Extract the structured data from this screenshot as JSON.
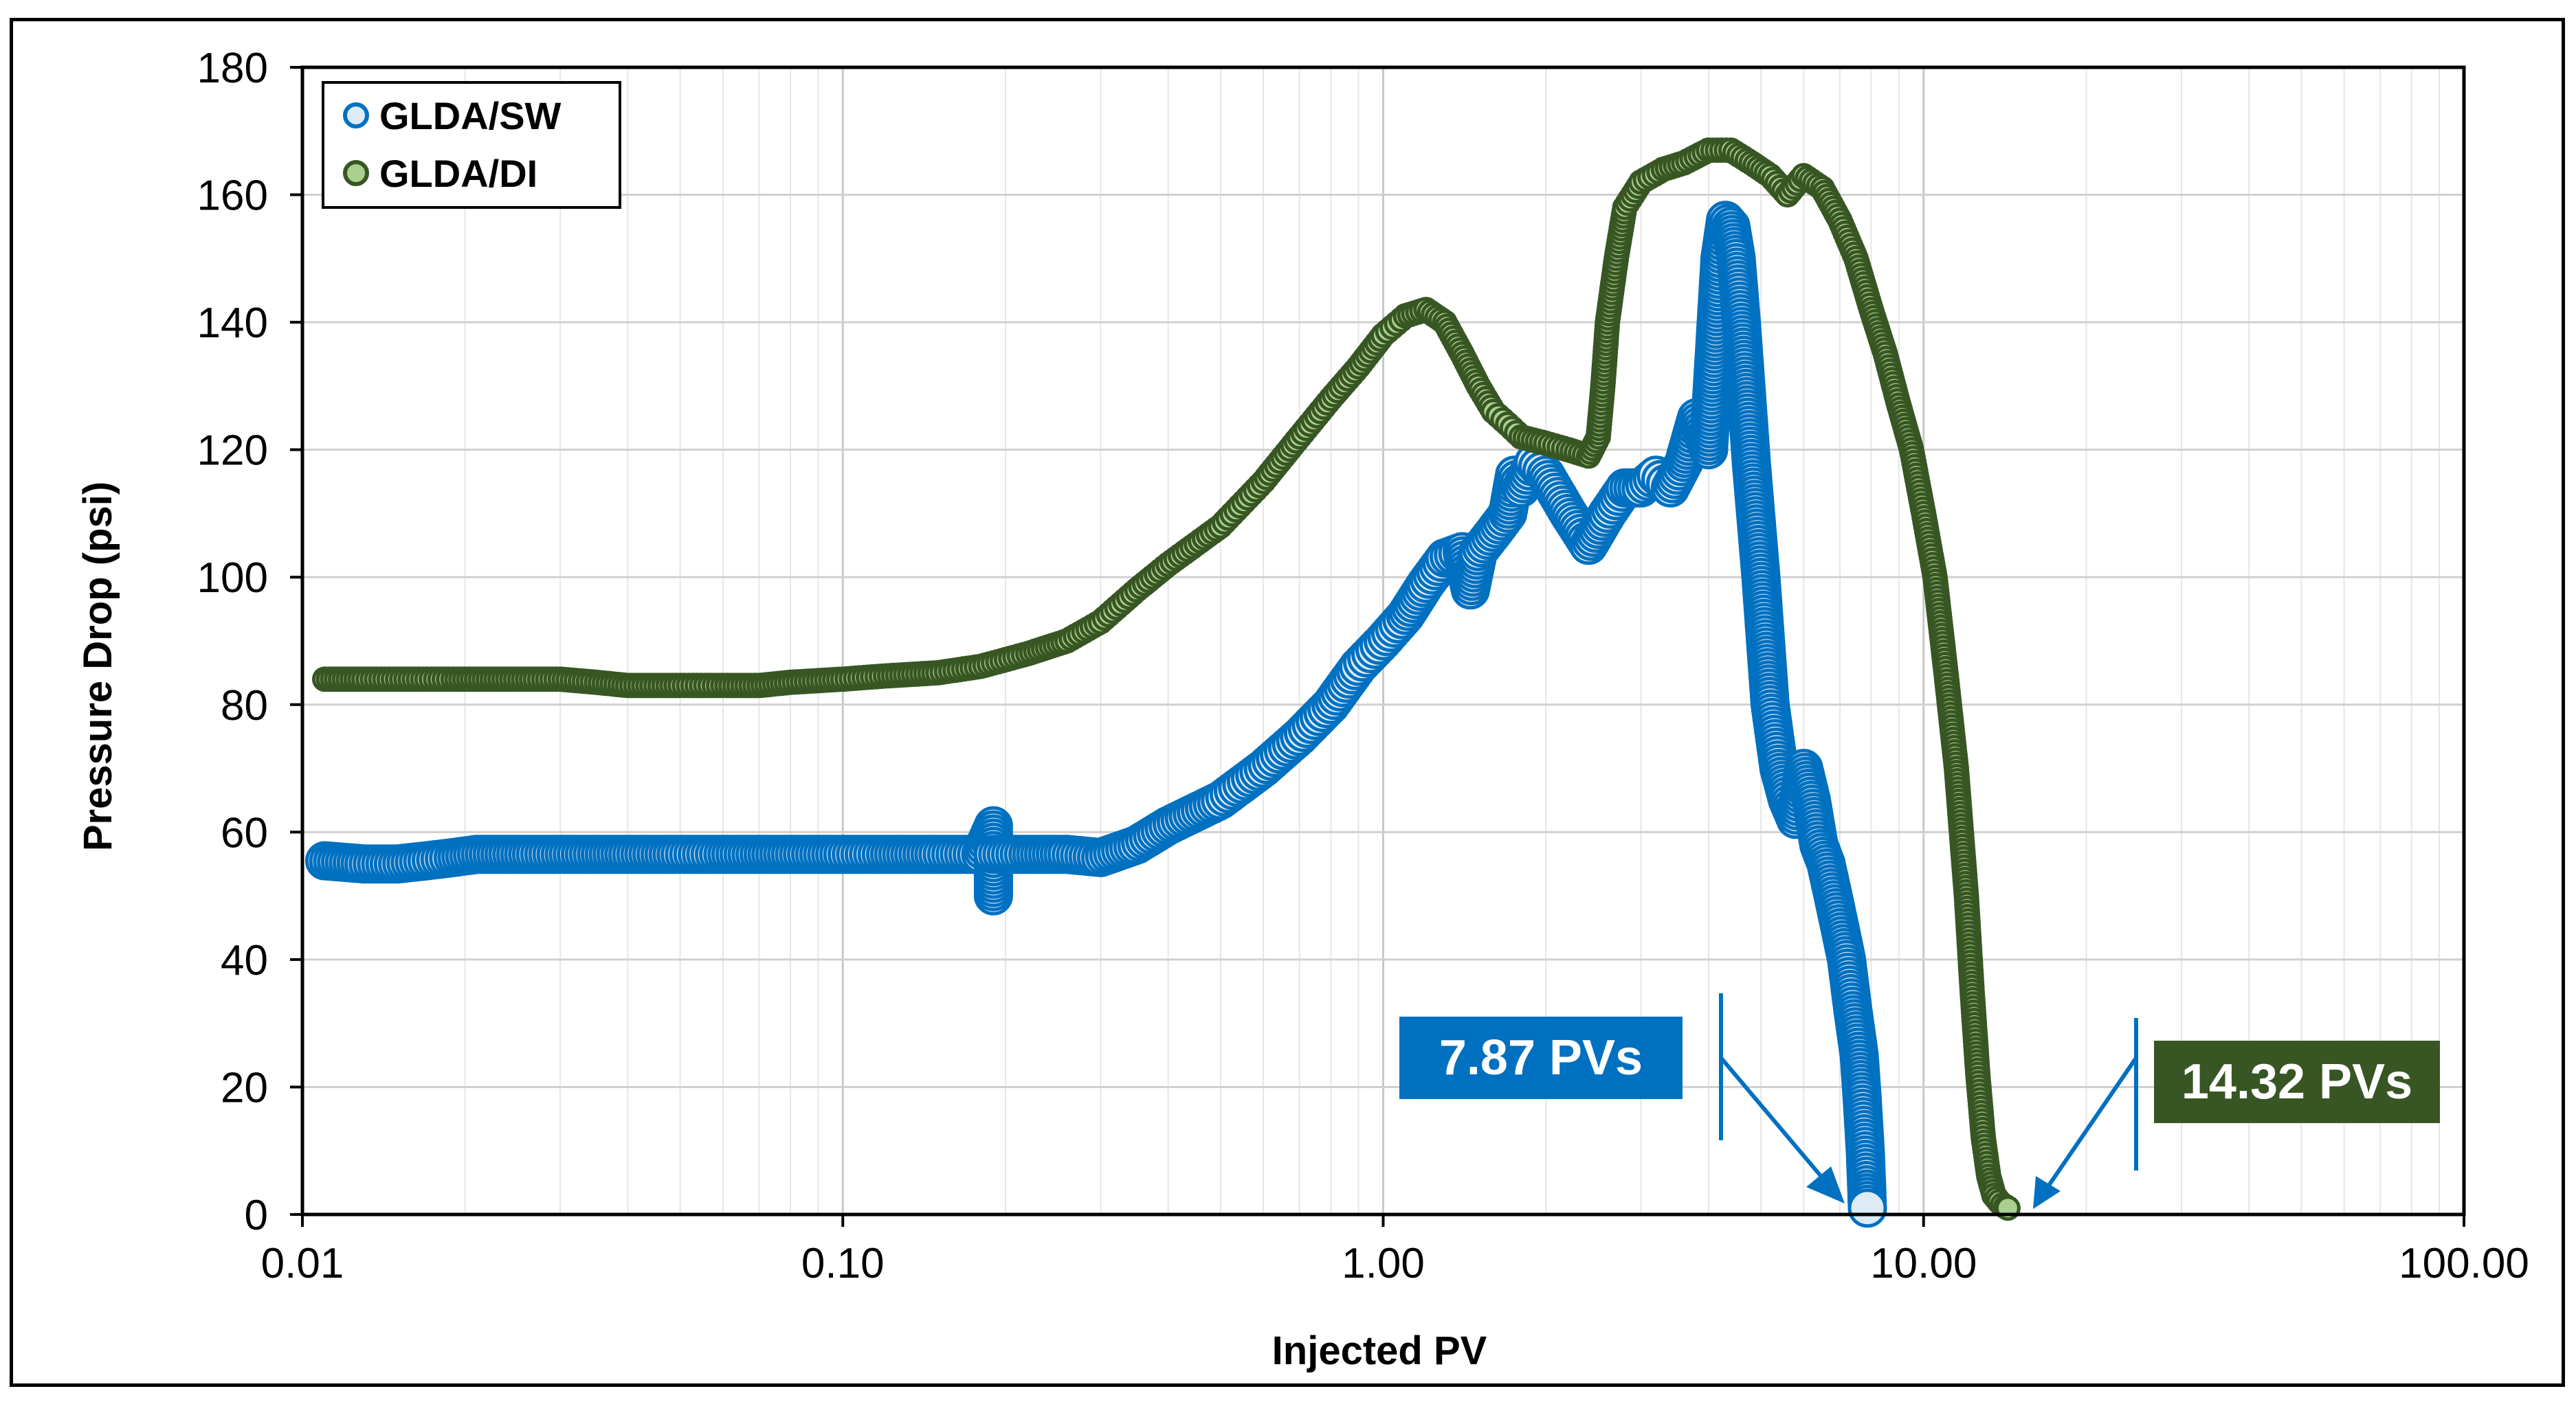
{
  "chart_data": {
    "type": "scatter",
    "title": "",
    "xlabel": "Injected PV",
    "ylabel": "Pressure Drop (psi)",
    "xscale": "log",
    "xlim": [
      0.01,
      100
    ],
    "ylim": [
      0,
      180
    ],
    "x_tick_labels": [
      "0.01",
      "0.10",
      "1.00",
      "10.00",
      "100.00"
    ],
    "y_tick_labels": [
      "0",
      "20",
      "40",
      "60",
      "80",
      "100",
      "120",
      "140",
      "160",
      "180"
    ],
    "grid": true,
    "legend_position": "top-left",
    "series": [
      {
        "name": "GLDA/SW",
        "color": "#0070C0",
        "fill": "#DDEBF7",
        "x": [
          0.011,
          0.013,
          0.015,
          0.017,
          0.019,
          0.021,
          0.024,
          0.027,
          0.03,
          0.035,
          0.04,
          0.05,
          0.06,
          0.07,
          0.08,
          0.1,
          0.12,
          0.15,
          0.18,
          0.19,
          0.19,
          0.19,
          0.22,
          0.26,
          0.3,
          0.35,
          0.4,
          0.5,
          0.6,
          0.7,
          0.8,
          0.9,
          1.0,
          1.1,
          1.2,
          1.3,
          1.4,
          1.45,
          1.5,
          1.6,
          1.7,
          1.75,
          1.8,
          1.9,
          2.0,
          2.2,
          2.4,
          2.6,
          2.8,
          3.0,
          3.2,
          3.4,
          3.6,
          3.8,
          4.0,
          4.1,
          4.2,
          4.3,
          4.4,
          4.5,
          4.6,
          4.8,
          5.0,
          5.2,
          5.4,
          5.6,
          5.8,
          6.0,
          6.2,
          6.4,
          6.6,
          6.8,
          7.0,
          7.2,
          7.4,
          7.6,
          7.7,
          7.8,
          7.85,
          7.87
        ],
        "values": [
          55.5,
          55,
          55,
          55.5,
          56,
          56.5,
          56.5,
          56.5,
          56.5,
          56.5,
          56.5,
          56.5,
          56.5,
          56.5,
          56.5,
          56.5,
          56.5,
          56.5,
          56.5,
          61,
          50,
          56.5,
          56.5,
          56.5,
          56,
          58,
          61,
          65,
          70,
          75,
          80,
          86,
          90,
          94,
          99,
          103,
          104,
          98,
          104,
          107,
          110,
          116,
          114,
          118,
          116,
          110,
          105,
          110,
          114,
          114,
          116,
          114,
          118,
          125,
          120,
          135,
          150,
          156,
          155,
          150,
          140,
          118,
          100,
          80,
          70,
          65,
          62,
          70,
          65,
          58,
          55,
          50,
          45,
          40,
          32,
          25,
          18,
          10,
          4,
          1
        ]
      },
      {
        "name": "GLDA/DI",
        "color": "#375623",
        "fill": "#A9D08E",
        "x": [
          0.011,
          0.013,
          0.015,
          0.017,
          0.019,
          0.021,
          0.024,
          0.027,
          0.03,
          0.035,
          0.04,
          0.05,
          0.06,
          0.07,
          0.08,
          0.1,
          0.12,
          0.15,
          0.18,
          0.22,
          0.26,
          0.3,
          0.35,
          0.4,
          0.5,
          0.6,
          0.7,
          0.8,
          0.9,
          1.0,
          1.1,
          1.2,
          1.3,
          1.4,
          1.5,
          1.6,
          1.7,
          1.8,
          2.0,
          2.2,
          2.4,
          2.5,
          2.55,
          2.6,
          2.7,
          2.8,
          3.0,
          3.3,
          3.6,
          4.0,
          4.4,
          4.8,
          5.2,
          5.6,
          6.0,
          6.5,
          7.0,
          7.5,
          8.0,
          8.5,
          9.0,
          9.5,
          10.0,
          10.5,
          11.0,
          11.5,
          12.0,
          12.3,
          12.6,
          12.9,
          13.2,
          13.5,
          13.8,
          14.0,
          14.2,
          14.32
        ],
        "values": [
          84,
          84,
          84,
          84,
          84,
          84,
          84,
          84,
          84,
          83.5,
          83,
          83,
          83,
          83,
          83.5,
          84,
          84.5,
          85,
          86,
          88,
          90,
          93,
          98,
          102,
          108,
          115,
          122,
          128,
          133,
          138,
          141,
          142,
          140,
          135,
          130,
          126,
          124,
          122,
          121,
          120,
          119,
          122,
          130,
          140,
          150,
          158,
          162,
          164,
          165,
          167,
          167,
          165,
          163,
          160,
          163,
          161,
          156,
          150,
          142,
          135,
          127,
          120,
          110,
          100,
          85,
          70,
          50,
          35,
          22,
          12,
          6,
          3,
          2,
          1.5,
          1.2,
          1
        ]
      }
    ],
    "annotations": [
      {
        "text": "7.87 PVs",
        "x": 7.87,
        "y": 0,
        "color": "#0070C0"
      },
      {
        "text": "14.32 PVs",
        "x": 14.32,
        "y": 0,
        "color": "#375623"
      }
    ]
  }
}
